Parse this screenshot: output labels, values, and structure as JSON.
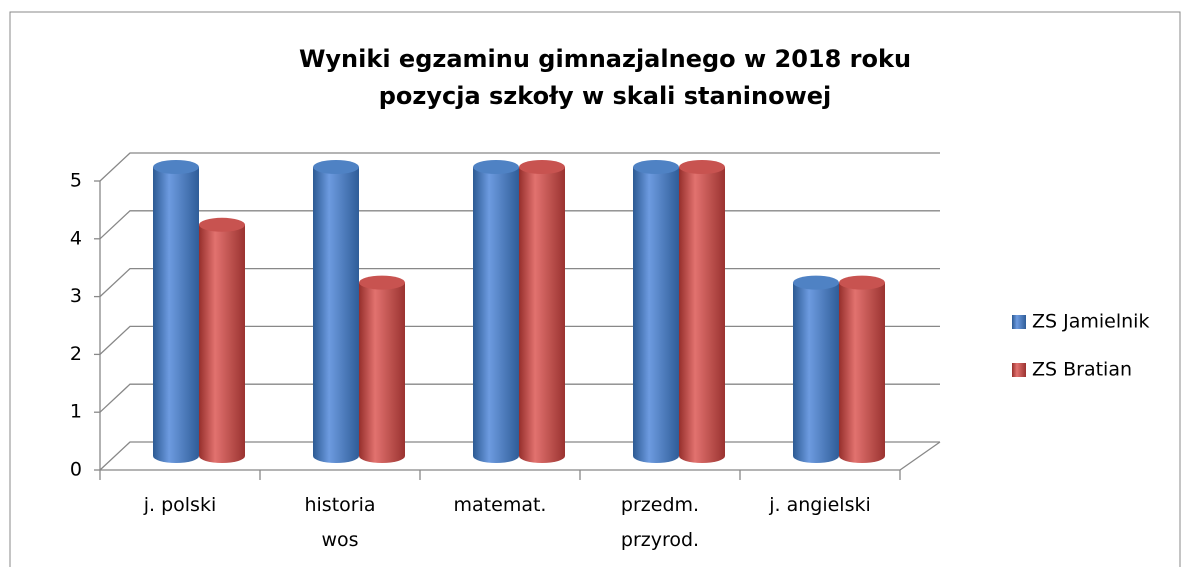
{
  "chart_data": {
    "type": "bar3d",
    "title": [
      "Wyniki egzaminu gimnazjalnego w 2018 roku",
      "pozycja szkoły w skali staninowej"
    ],
    "categories": [
      "j. polski",
      "historia\nwos",
      "matemat.",
      "przedm.\nprzyrod.",
      "j. angielski"
    ],
    "series": [
      {
        "name": "ZS Jamielnik",
        "color": "#4a7ebb",
        "values": [
          5,
          5,
          5,
          5,
          3
        ]
      },
      {
        "name": "ZS Bratian",
        "color": "#be4b48",
        "values": [
          4,
          3,
          5,
          5,
          3
        ]
      }
    ],
    "ylim": [
      0,
      5
    ],
    "yticks": [
      0,
      1,
      2,
      3,
      4,
      5
    ],
    "grid": true,
    "legend": "right"
  }
}
